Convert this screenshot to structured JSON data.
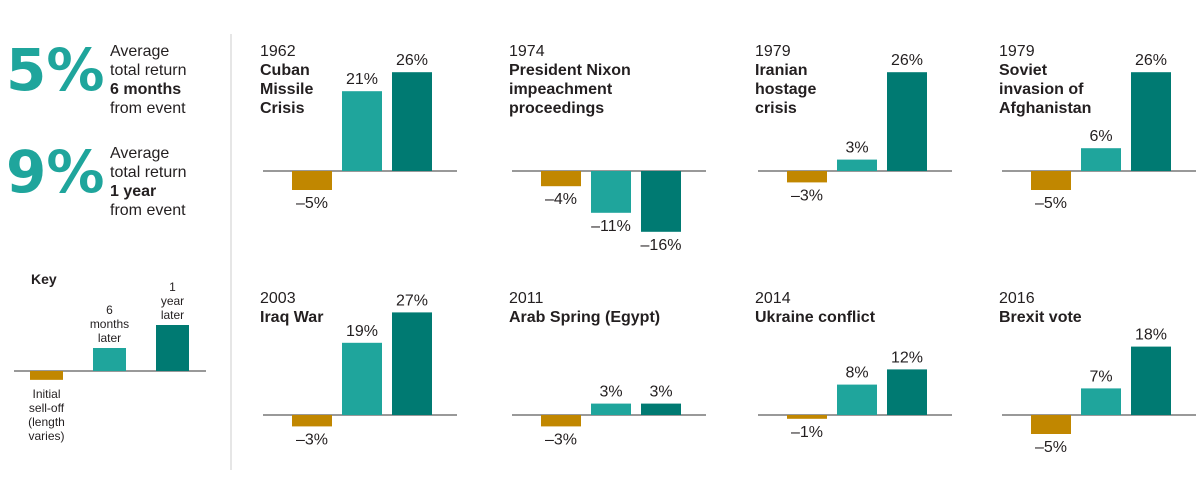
{
  "colors": {
    "selloff": "#c18700",
    "six_months": "#1fa59c",
    "one_year": "#007a72",
    "stat_number": "#1fa59c",
    "axis": "#333333",
    "divider": "#cccccc"
  },
  "summary": [
    {
      "number": "5%",
      "lines": [
        "Average",
        "total return",
        "6 months",
        "from event"
      ],
      "bold": [
        false,
        false,
        true,
        false
      ]
    },
    {
      "number": "9%",
      "lines": [
        "Average",
        "total return",
        "1 year",
        "from event"
      ],
      "bold": [
        false,
        false,
        true,
        false
      ]
    }
  ],
  "key": {
    "title": "Key",
    "items": [
      {
        "label": [
          "Initial",
          "sell-off",
          "(length",
          "varies)"
        ],
        "color": "#c18700"
      },
      {
        "label": [
          "6",
          "months",
          "later"
        ],
        "color": "#1fa59c"
      },
      {
        "label": [
          "1",
          "year",
          "later"
        ],
        "color": "#007a72"
      }
    ]
  },
  "chart_data": [
    {
      "type": "bar",
      "year": "1962",
      "title": [
        "Cuban",
        "Missile",
        "Crisis"
      ],
      "categories": [
        "Initial sell-off",
        "6 months later",
        "1 year later"
      ],
      "values": [
        -5,
        21,
        26
      ],
      "labels": [
        "–5%",
        "21%",
        "26%"
      ]
    },
    {
      "type": "bar",
      "year": "1974",
      "title": [
        "President Nixon",
        "impeachment",
        "proceedings"
      ],
      "categories": [
        "Initial sell-off",
        "6 months later",
        "1 year later"
      ],
      "values": [
        -4,
        -11,
        -16
      ],
      "labels": [
        "–4%",
        "–11%",
        "–16%"
      ]
    },
    {
      "type": "bar",
      "year": "1979",
      "title": [
        "Iranian",
        "hostage",
        "crisis"
      ],
      "categories": [
        "Initial sell-off",
        "6 months later",
        "1 year later"
      ],
      "values": [
        -3,
        3,
        26
      ],
      "labels": [
        "–3%",
        "3%",
        "26%"
      ]
    },
    {
      "type": "bar",
      "year": "1979",
      "title": [
        "Soviet",
        "invasion of",
        "Afghanistan"
      ],
      "categories": [
        "Initial sell-off",
        "6 months later",
        "1 year later"
      ],
      "values": [
        -5,
        6,
        26
      ],
      "labels": [
        "–5%",
        "6%",
        "26%"
      ]
    },
    {
      "type": "bar",
      "year": "2003",
      "title": [
        "Iraq War"
      ],
      "categories": [
        "Initial sell-off",
        "6 months later",
        "1 year later"
      ],
      "values": [
        -3,
        19,
        27
      ],
      "labels": [
        "–3%",
        "19%",
        "27%"
      ]
    },
    {
      "type": "bar",
      "year": "2011",
      "title": [
        "Arab Spring (Egypt)"
      ],
      "categories": [
        "Initial sell-off",
        "6 months later",
        "1 year later"
      ],
      "values": [
        -3,
        3,
        3
      ],
      "labels": [
        "–3%",
        "3%",
        "3%"
      ]
    },
    {
      "type": "bar",
      "year": "2014",
      "title": [
        "Ukraine conflict"
      ],
      "categories": [
        "Initial sell-off",
        "6 months later",
        "1 year later"
      ],
      "values": [
        -1,
        8,
        12
      ],
      "labels": [
        "–1%",
        "8%",
        "12%"
      ]
    },
    {
      "type": "bar",
      "year": "2016",
      "title": [
        "Brexit vote"
      ],
      "categories": [
        "Initial sell-off",
        "6 months later",
        "1 year later"
      ],
      "values": [
        -5,
        7,
        18
      ],
      "labels": [
        "–5%",
        "7%",
        "18%"
      ]
    }
  ]
}
